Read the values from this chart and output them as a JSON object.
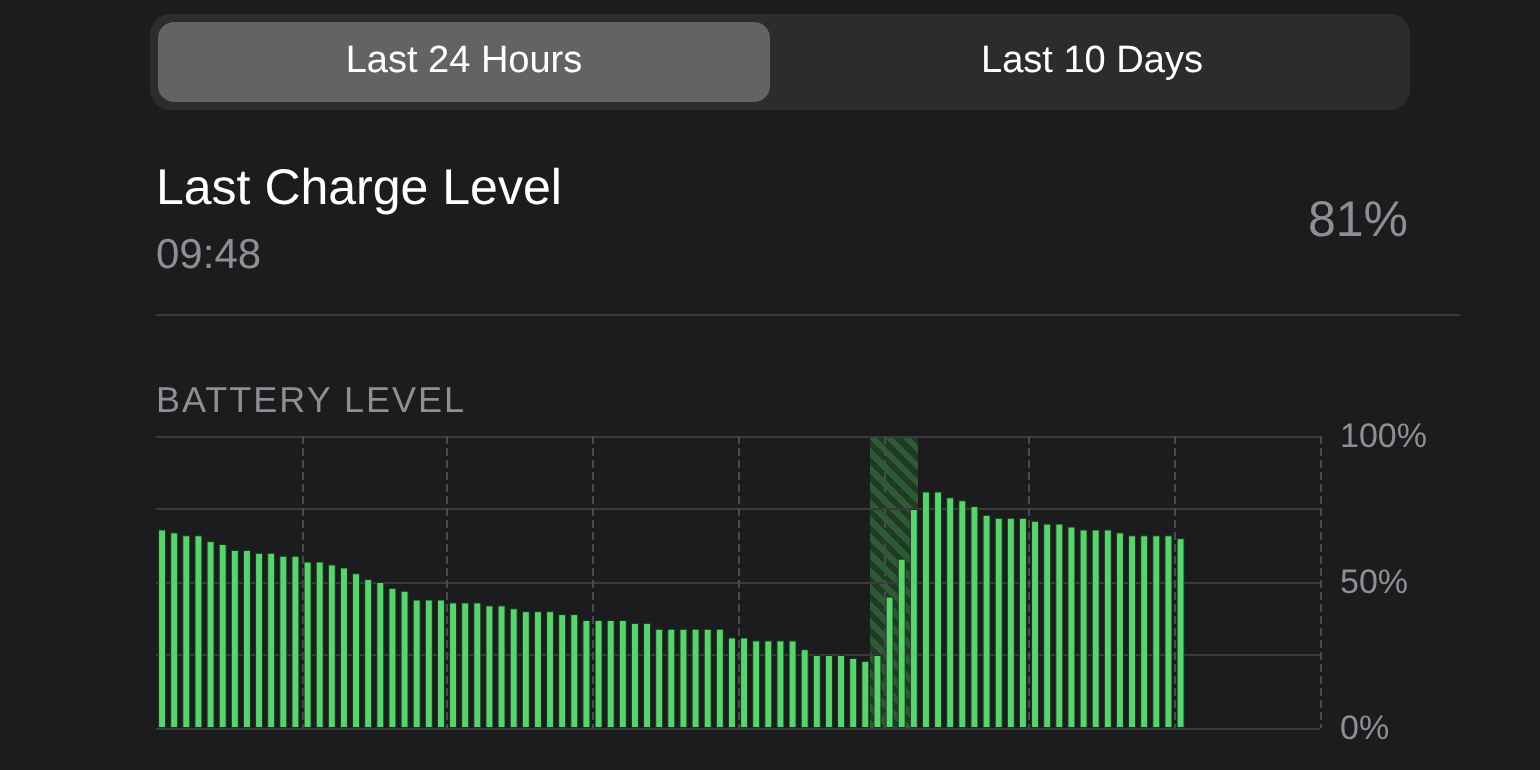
{
  "chart_data": {
    "type": "bar",
    "title": "BATTERY LEVEL",
    "annotations": [
      "Last 24 Hours",
      "Last 10 Days",
      "Last Charge Level",
      "09:48",
      "81%"
    ],
    "categories": [
      null,
      null,
      null,
      null,
      null,
      null,
      null,
      null,
      null,
      null,
      null,
      null,
      null,
      null,
      null,
      null,
      null,
      null,
      null,
      null,
      null,
      null,
      null,
      null,
      null,
      null,
      null,
      null,
      null,
      null,
      null,
      null,
      null,
      null,
      null,
      null,
      null,
      null,
      null,
      null,
      null,
      null,
      null,
      null,
      null,
      null,
      null,
      null,
      null,
      null,
      null,
      null,
      null,
      null,
      null,
      null,
      null,
      null,
      null,
      null,
      null,
      null,
      null,
      null,
      null,
      null,
      null,
      null,
      null,
      null,
      null,
      null,
      null,
      null,
      null,
      null,
      null,
      null,
      null,
      null,
      null,
      null,
      null,
      null,
      null,
      null,
      null,
      null,
      null,
      null,
      null,
      null,
      null,
      null,
      null,
      null
    ],
    "values": [
      68,
      67,
      66,
      66,
      64,
      63,
      61,
      61,
      60,
      60,
      59,
      59,
      57,
      57,
      56,
      55,
      53,
      51,
      50,
      48,
      47,
      44,
      44,
      44,
      43,
      43,
      43,
      42,
      42,
      41,
      40,
      40,
      40,
      39,
      39,
      37,
      37,
      37,
      37,
      36,
      36,
      34,
      34,
      34,
      34,
      34,
      34,
      31,
      31,
      30,
      30,
      30,
      30,
      27,
      25,
      25,
      25,
      24,
      23,
      25,
      45,
      58,
      75,
      81,
      81,
      79,
      78,
      76,
      73,
      72,
      72,
      72,
      71,
      70,
      70,
      69,
      68,
      68,
      68,
      67,
      66,
      66,
      66,
      66,
      65,
      null,
      null,
      null,
      null,
      null,
      null,
      null,
      null,
      null,
      null,
      null
    ],
    "color": "#5bd16f",
    "ylim": [
      0,
      100
    ],
    "yticks": [
      {
        "value": 0,
        "label": "0%"
      },
      {
        "value": 50,
        "label": "50%"
      },
      {
        "value": 100,
        "label": "100%"
      }
    ],
    "grid": true
  }
}
